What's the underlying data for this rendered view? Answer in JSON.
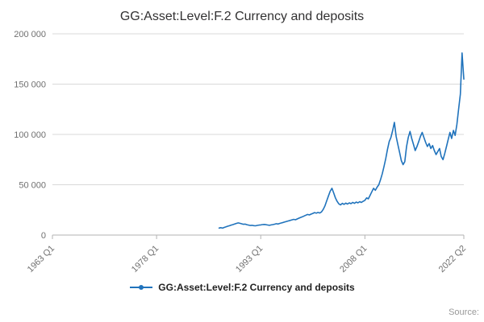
{
  "chart_data": {
    "type": "line",
    "title": "GG:Asset:Level:F.2 Currency and deposits",
    "xlabel": "",
    "ylabel": "",
    "x_range": [
      "1963 Q1",
      "2022 Q2"
    ],
    "x_ticks": [
      "1963 Q1",
      "1978 Q1",
      "1993 Q1",
      "2008 Q1",
      "2022 Q2"
    ],
    "y_ticks": [
      {
        "label": "0",
        "value": 0
      },
      {
        "label": "50 000",
        "value": 50000
      },
      {
        "label": "100 000",
        "value": 100000
      },
      {
        "label": "150 000",
        "value": 150000
      },
      {
        "label": "200 000",
        "value": 200000
      }
    ],
    "ylim": [
      0,
      200000
    ],
    "grid": "horizontal",
    "legend_position": "bottom",
    "series": [
      {
        "name": "GG:Asset:Level:F.2 Currency and deposits",
        "color": "#2073bc",
        "start": "1987 Q1",
        "frequency": "quarterly",
        "values": [
          7000,
          7400,
          6900,
          7600,
          8200,
          8800,
          9300,
          9900,
          10400,
          11000,
          11600,
          12100,
          11700,
          11200,
          10700,
          10900,
          10300,
          9900,
          9500,
          9700,
          9400,
          9200,
          9600,
          9900,
          10100,
          10400,
          10600,
          10300,
          10000,
          9700,
          10100,
          10400,
          10800,
          11300,
          11000,
          11600,
          12100,
          12600,
          13100,
          13600,
          14100,
          14600,
          15100,
          15600,
          15200,
          16000,
          16800,
          17500,
          18200,
          19000,
          19800,
          20500,
          20000,
          20800,
          21500,
          22300,
          21800,
          22500,
          21900,
          23000,
          25500,
          29000,
          34000,
          39000,
          43500,
          46500,
          42000,
          37000,
          33500,
          31000,
          30000,
          31500,
          30500,
          31800,
          30800,
          32000,
          31200,
          32500,
          31500,
          32800,
          32000,
          33200,
          32400,
          33600,
          34500,
          37000,
          36000,
          39500,
          43000,
          46500,
          44500,
          47500,
          50000,
          55000,
          61000,
          68000,
          76000,
          85000,
          93000,
          97000,
          104000,
          112000,
          98000,
          90000,
          82000,
          74000,
          70000,
          73000,
          88000,
          97000,
          103000,
          96000,
          90000,
          84000,
          88000,
          93000,
          98000,
          102000,
          97000,
          92000,
          88000,
          91000,
          86000,
          89000,
          84000,
          80000,
          83000,
          86000,
          78000,
          75000,
          81000,
          88000,
          95000,
          102000,
          96000,
          104000,
          99000,
          110000,
          125000,
          140000,
          181000,
          155000
        ]
      }
    ]
  },
  "footer": {
    "source_label": "Source:"
  },
  "colors": {
    "accent": "#2073bc",
    "grid": "#d9d9d9",
    "axis": "#b3b3b3",
    "tick_text": "#707070",
    "title_text": "#323132",
    "legend_text": "#222222",
    "source_text": "#999999"
  }
}
